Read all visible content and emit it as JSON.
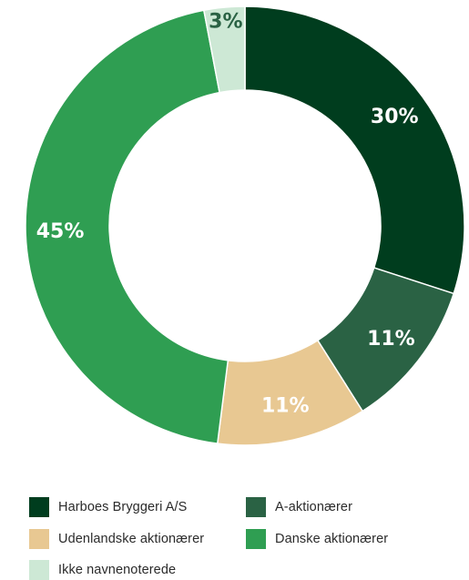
{
  "chart_data": {
    "type": "pie",
    "donut": true,
    "title": "",
    "categories": [
      "Harboes Bryggeri A/S",
      "A-aktionærer",
      "Udenlandske aktionærer",
      "Danske aktionærer",
      "Ikke navnenoterede"
    ],
    "values": [
      30,
      11,
      11,
      45,
      3
    ],
    "labels": [
      "30%",
      "11%",
      "11%",
      "45%",
      "3%"
    ],
    "colors": [
      "#003d1e",
      "#2a6244",
      "#e8c892",
      "#2f9e52",
      "#cde8d5"
    ],
    "label_colors": [
      "#ffffff",
      "#ffffff",
      "#ffffff",
      "#ffffff",
      "#2a6244"
    ],
    "legend_position": "bottom",
    "start_angle": "12 o'clock",
    "direction": "clockwise"
  },
  "legend": {
    "items": [
      {
        "label": "Harboes Bryggeri A/S",
        "color": "#003d1e"
      },
      {
        "label": "A-aktionærer",
        "color": "#2a6244"
      },
      {
        "label": "Udenlandske aktionærer",
        "color": "#e8c892"
      },
      {
        "label": "Danske aktionærer",
        "color": "#2f9e52"
      },
      {
        "label": "Ikke navnenoterede",
        "color": "#cde8d5"
      }
    ]
  }
}
